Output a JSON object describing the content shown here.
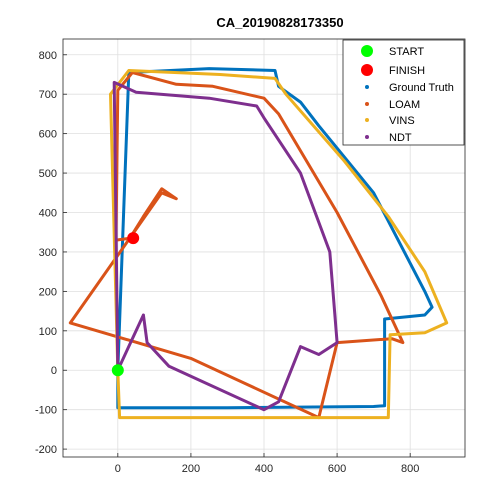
{
  "chart_data": {
    "type": "scatter",
    "title": "CA_20190828173350",
    "xlabel": "",
    "ylabel": "",
    "xlim": [
      -150,
      950
    ],
    "ylim": [
      -220,
      840
    ],
    "x_ticks": [
      0,
      200,
      400,
      600,
      800
    ],
    "y_ticks": [
      -200,
      -100,
      0,
      100,
      200,
      300,
      400,
      500,
      600,
      700,
      800
    ],
    "grid": true,
    "legend_position": "top-right",
    "markers": [
      {
        "name": "START",
        "color": "#00ff00",
        "point": [
          0,
          0
        ]
      },
      {
        "name": "FINISH",
        "color": "#ff0000",
        "point": [
          42,
          335
        ]
      }
    ],
    "series": [
      {
        "name": "Ground Truth",
        "color": "#0072bd",
        "points": [
          [
            0,
            0
          ],
          [
            0,
            -95
          ],
          [
            300,
            -95
          ],
          [
            700,
            -92
          ],
          [
            730,
            -90
          ],
          [
            730,
            130
          ],
          [
            840,
            140
          ],
          [
            860,
            160
          ],
          [
            840,
            200
          ],
          [
            700,
            450
          ],
          [
            550,
            620
          ],
          [
            500,
            680
          ],
          [
            440,
            720
          ],
          [
            430,
            760
          ],
          [
            250,
            765
          ],
          [
            30,
            755
          ],
          [
            0,
            0
          ]
        ]
      },
      {
        "name": "LOAM",
        "color": "#d95319",
        "points": [
          [
            35,
            335
          ],
          [
            40,
            345
          ],
          [
            70,
            390
          ],
          [
            120,
            460
          ],
          [
            160,
            435
          ],
          [
            120,
            450
          ],
          [
            -130,
            120
          ],
          [
            200,
            30
          ],
          [
            550,
            -120
          ],
          [
            600,
            70
          ],
          [
            750,
            80
          ],
          [
            780,
            70
          ],
          [
            720,
            190
          ],
          [
            600,
            400
          ],
          [
            440,
            650
          ],
          [
            400,
            690
          ],
          [
            260,
            720
          ],
          [
            160,
            725
          ],
          [
            40,
            755
          ],
          [
            0,
            710
          ],
          [
            -5,
            330
          ],
          [
            35,
            335
          ]
        ]
      },
      {
        "name": "VINS",
        "color": "#edb120",
        "points": [
          [
            0,
            0
          ],
          [
            5,
            -120
          ],
          [
            400,
            -120
          ],
          [
            740,
            -120
          ],
          [
            745,
            90
          ],
          [
            840,
            95
          ],
          [
            900,
            120
          ],
          [
            840,
            250
          ],
          [
            740,
            390
          ],
          [
            620,
            530
          ],
          [
            460,
            700
          ],
          [
            430,
            740
          ],
          [
            280,
            750
          ],
          [
            30,
            760
          ],
          [
            -20,
            700
          ],
          [
            0,
            0
          ]
        ]
      },
      {
        "name": "NDT",
        "color": "#7e2f8e",
        "points": [
          [
            70,
            140
          ],
          [
            80,
            70
          ],
          [
            140,
            10
          ],
          [
            400,
            -100
          ],
          [
            440,
            -80
          ],
          [
            500,
            60
          ],
          [
            550,
            40
          ],
          [
            600,
            70
          ],
          [
            580,
            300
          ],
          [
            500,
            500
          ],
          [
            400,
            640
          ],
          [
            380,
            670
          ],
          [
            250,
            690
          ],
          [
            50,
            705
          ],
          [
            -10,
            730
          ],
          [
            0,
            0
          ],
          [
            70,
            140
          ]
        ]
      }
    ]
  }
}
